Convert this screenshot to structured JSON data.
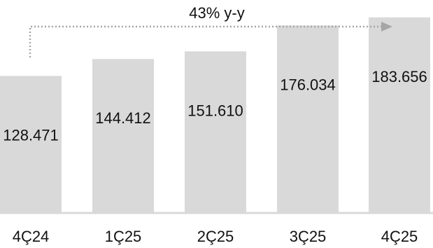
{
  "chart_data": {
    "type": "bar",
    "categories": [
      "4Ç24",
      "1Ç25",
      "2Ç25",
      "3Ç25",
      "4Ç25"
    ],
    "values": [
      128.471,
      144.412,
      151.61,
      176.034,
      183.656
    ],
    "value_labels": [
      "128.471",
      "144.412",
      "151.610",
      "176.034",
      "183.656"
    ],
    "annotation": "43% y-y",
    "ylim": [
      0,
      200
    ],
    "grid": false,
    "bar_color": "#d9d9d9",
    "baseline_color": "#d9d9d9",
    "arrow_color": "#a6a6a6"
  }
}
